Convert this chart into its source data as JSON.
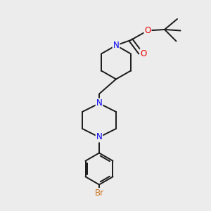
{
  "bg_color": "#ececec",
  "bond_color": "#1a1a1a",
  "N_color": "#0000ee",
  "O_color": "#ee0000",
  "Br_color": "#cc7722",
  "bond_width": 1.4,
  "figsize": [
    3.0,
    3.0
  ],
  "dpi": 100,
  "xlim": [
    0,
    10
  ],
  "ylim": [
    0,
    10
  ]
}
